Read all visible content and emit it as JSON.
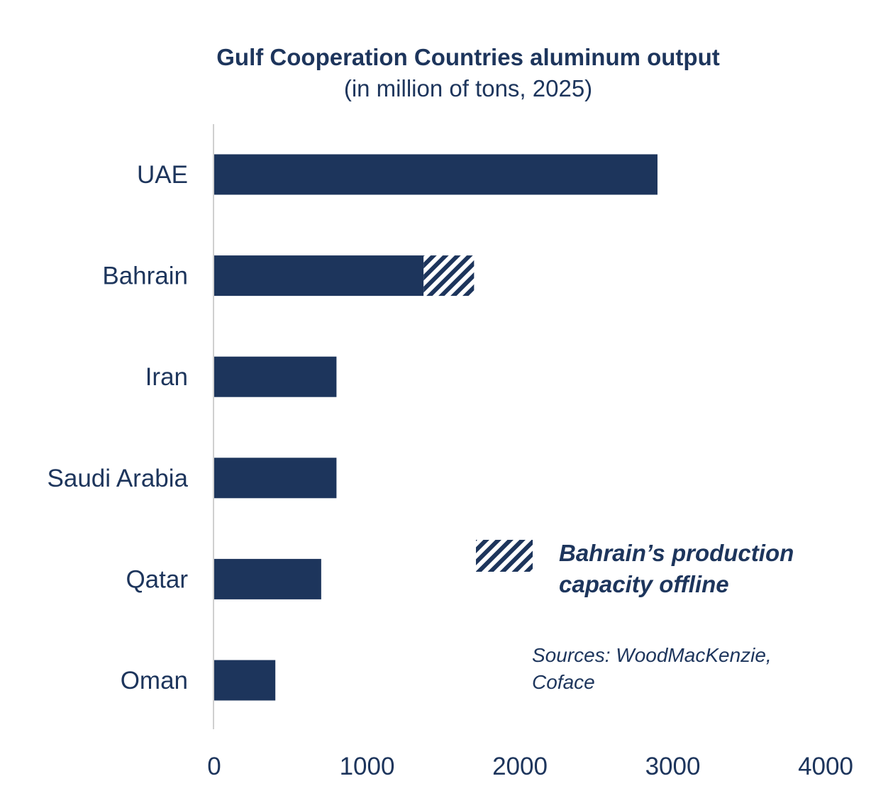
{
  "chart_data": {
    "type": "bar",
    "orientation": "horizontal",
    "stacked": true,
    "title": "Gulf Cooperation Countries aluminum output",
    "subtitle": "(in million of tons, 2025)",
    "categories": [
      "UAE",
      "Bahrain",
      "Iran",
      "Saudi Arabia",
      "Qatar",
      "Oman"
    ],
    "series": [
      {
        "values": [
          2900,
          1370,
          800,
          800,
          700,
          400
        ],
        "color": "#1d355c",
        "pattern": "solid"
      },
      {
        "name": "Bahrain’s production capacity offline",
        "values": [
          0,
          330,
          0,
          0,
          0,
          0
        ],
        "color": "#1d355c",
        "pattern": "diagonal-hatch"
      }
    ],
    "xlim": [
      0,
      4000
    ],
    "xticks": [
      "0",
      "1000",
      "2000",
      "3000",
      "4000"
    ],
    "grid": false,
    "legend_position": "bottom-right",
    "legend": [
      "Bahrain’s production",
      "capacity offline"
    ],
    "sources": [
      "Sources: WoodMacKenzie,",
      "Coface"
    ]
  }
}
